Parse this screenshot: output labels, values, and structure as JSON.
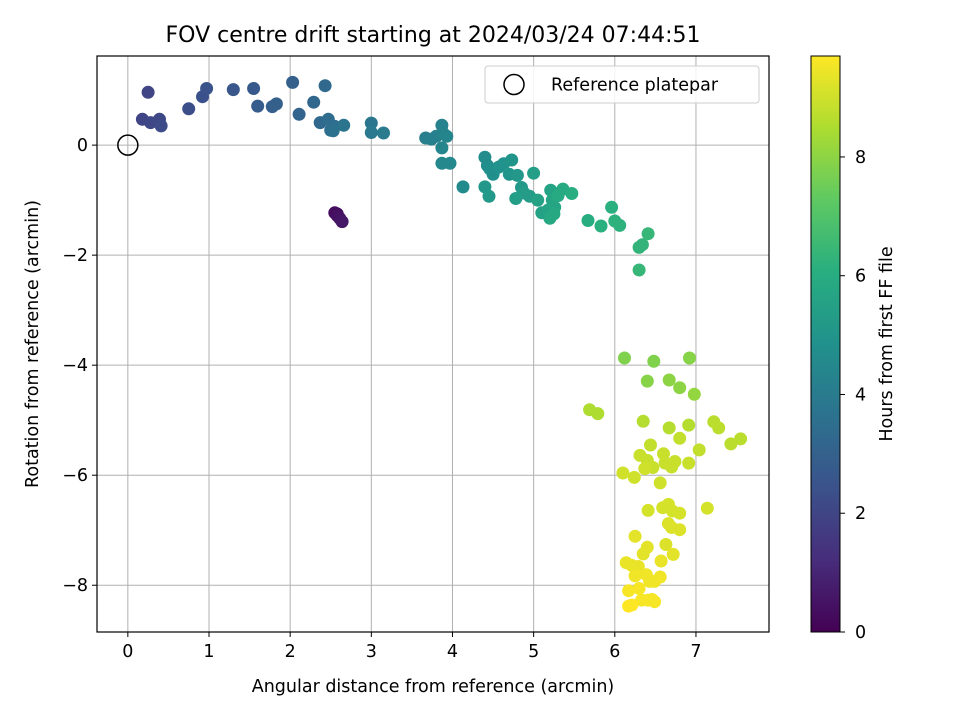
{
  "chart_data": {
    "type": "scatter",
    "title": "FOV centre drift starting at 2024/03/24 07:44:51",
    "xlabel": "Angular distance from reference (arcmin)",
    "ylabel": "Rotation from reference (arcmin)",
    "xlim": [
      -0.38,
      7.9
    ],
    "ylim": [
      -8.85,
      1.62
    ],
    "xticks": [
      0,
      1,
      2,
      3,
      4,
      5,
      6,
      7
    ],
    "yticks": [
      0,
      -2,
      -4,
      -6,
      -8
    ],
    "xtick_labels": [
      "0",
      "1",
      "2",
      "3",
      "4",
      "5",
      "6",
      "7"
    ],
    "ytick_labels": [
      "0",
      "−2",
      "−4",
      "−6",
      "−8"
    ],
    "grid": true,
    "legend": {
      "location": "upper right",
      "entries": [
        "Reference platepar"
      ]
    },
    "reference_point": {
      "x": 0,
      "y": 0,
      "label": "Reference platepar"
    },
    "colorbar": {
      "label": "Hours from first FF file",
      "colormap": "viridis",
      "range": [
        0,
        9.7
      ],
      "ticks": [
        0,
        2,
        4,
        6,
        8
      ],
      "tick_labels": [
        "0",
        "2",
        "4",
        "6",
        "8"
      ]
    },
    "series": [
      {
        "points": [
          [
            2.55,
            -1.23,
            0.3
          ],
          [
            2.58,
            -1.28,
            0.4
          ],
          [
            2.61,
            -1.33,
            0.5
          ],
          [
            2.64,
            -1.39,
            0.6
          ],
          [
            2.58,
            -1.25,
            0.35
          ],
          [
            0.25,
            0.96,
            2.0
          ],
          [
            0.18,
            0.47,
            2.0
          ],
          [
            0.28,
            0.41,
            2.1
          ],
          [
            0.39,
            0.47,
            2.1
          ],
          [
            0.41,
            0.35,
            2.2
          ],
          [
            0.75,
            0.66,
            2.3
          ],
          [
            0.92,
            0.88,
            2.4
          ],
          [
            0.97,
            1.03,
            2.5
          ],
          [
            1.3,
            1.01,
            2.6
          ],
          [
            1.55,
            1.03,
            2.7
          ],
          [
            1.6,
            0.71,
            2.8
          ],
          [
            1.78,
            0.7,
            2.9
          ],
          [
            1.83,
            0.75,
            2.95
          ],
          [
            2.03,
            1.14,
            3.0
          ],
          [
            2.11,
            0.56,
            3.1
          ],
          [
            2.29,
            0.78,
            3.2
          ],
          [
            2.37,
            0.41,
            3.3
          ],
          [
            2.43,
            1.08,
            3.3
          ],
          [
            2.47,
            0.47,
            3.4
          ],
          [
            2.5,
            0.27,
            3.5
          ],
          [
            2.55,
            0.34,
            3.5
          ],
          [
            2.53,
            0.26,
            3.6
          ],
          [
            2.66,
            0.36,
            3.7
          ],
          [
            3.0,
            0.4,
            3.8
          ],
          [
            3.0,
            0.23,
            3.9
          ],
          [
            3.15,
            0.22,
            4.0
          ],
          [
            3.67,
            0.13,
            4.1
          ],
          [
            3.74,
            0.11,
            4.2
          ],
          [
            3.8,
            0.16,
            4.2
          ],
          [
            3.87,
            0.36,
            4.3
          ],
          [
            3.88,
            0.23,
            4.3
          ],
          [
            3.93,
            0.16,
            4.4
          ],
          [
            3.87,
            -0.05,
            4.4
          ],
          [
            3.87,
            -0.33,
            4.5
          ],
          [
            3.97,
            -0.33,
            4.5
          ],
          [
            4.13,
            -0.76,
            4.6
          ],
          [
            4.4,
            -0.22,
            4.7
          ],
          [
            4.43,
            -0.37,
            4.7
          ],
          [
            4.46,
            -0.43,
            4.8
          ],
          [
            4.5,
            -0.53,
            4.8
          ],
          [
            4.57,
            -0.4,
            4.9
          ],
          [
            4.63,
            -0.34,
            4.9
          ],
          [
            4.7,
            -0.53,
            5.0
          ],
          [
            4.73,
            -0.27,
            5.0
          ],
          [
            4.8,
            -0.55,
            5.1
          ],
          [
            4.4,
            -0.76,
            5.1
          ],
          [
            4.45,
            -0.93,
            5.2
          ],
          [
            4.85,
            -0.77,
            5.2
          ],
          [
            4.88,
            -0.87,
            5.3
          ],
          [
            4.95,
            -0.93,
            5.3
          ],
          [
            4.78,
            -0.97,
            5.4
          ],
          [
            5.0,
            -0.51,
            5.4
          ],
          [
            5.05,
            -1.0,
            5.5
          ],
          [
            5.1,
            -1.23,
            5.5
          ],
          [
            5.18,
            -1.18,
            5.6
          ],
          [
            5.21,
            -0.82,
            5.6
          ],
          [
            5.23,
            -1.0,
            5.7
          ],
          [
            5.26,
            -1.13,
            5.7
          ],
          [
            5.2,
            -1.33,
            5.8
          ],
          [
            5.25,
            -1.25,
            5.8
          ],
          [
            5.3,
            -0.92,
            5.9
          ],
          [
            5.36,
            -0.8,
            5.9
          ],
          [
            5.47,
            -0.88,
            6.0
          ],
          [
            5.67,
            -1.37,
            6.0
          ],
          [
            5.83,
            -1.47,
            6.1
          ],
          [
            5.96,
            -1.13,
            6.1
          ],
          [
            6.0,
            -1.38,
            6.2
          ],
          [
            6.06,
            -1.46,
            6.2
          ],
          [
            6.3,
            -1.86,
            6.3
          ],
          [
            6.34,
            -1.81,
            6.3
          ],
          [
            6.41,
            -1.61,
            6.4
          ],
          [
            6.3,
            -2.27,
            6.4
          ],
          [
            6.12,
            -3.87,
            7.8
          ],
          [
            6.48,
            -3.93,
            7.8
          ],
          [
            6.92,
            -3.87,
            7.9
          ],
          [
            6.4,
            -4.29,
            7.9
          ],
          [
            6.67,
            -4.27,
            8.0
          ],
          [
            6.8,
            -4.41,
            8.0
          ],
          [
            6.98,
            -4.53,
            8.1
          ],
          [
            5.69,
            -4.81,
            8.5
          ],
          [
            5.79,
            -4.88,
            8.5
          ],
          [
            6.35,
            -5.02,
            8.6
          ],
          [
            6.67,
            -5.14,
            8.6
          ],
          [
            6.91,
            -5.09,
            8.6
          ],
          [
            7.22,
            -5.03,
            8.7
          ],
          [
            7.28,
            -5.14,
            8.7
          ],
          [
            7.43,
            -5.43,
            8.7
          ],
          [
            7.55,
            -5.34,
            8.7
          ],
          [
            6.44,
            -5.45,
            8.8
          ],
          [
            6.8,
            -5.33,
            8.8
          ],
          [
            7.04,
            -5.54,
            8.8
          ],
          [
            6.31,
            -5.64,
            8.9
          ],
          [
            6.4,
            -5.73,
            8.9
          ],
          [
            6.47,
            -5.86,
            8.9
          ],
          [
            6.6,
            -5.61,
            8.9
          ],
          [
            6.62,
            -5.78,
            8.9
          ],
          [
            6.7,
            -5.85,
            8.9
          ],
          [
            6.74,
            -5.75,
            8.9
          ],
          [
            6.91,
            -5.78,
            8.9
          ],
          [
            6.1,
            -5.96,
            9.0
          ],
          [
            6.24,
            -6.04,
            9.0
          ],
          [
            6.37,
            -5.88,
            9.0
          ],
          [
            6.56,
            -6.14,
            9.0
          ],
          [
            6.41,
            -6.64,
            9.1
          ],
          [
            6.59,
            -6.59,
            9.1
          ],
          [
            6.66,
            -6.53,
            9.1
          ],
          [
            6.71,
            -6.65,
            9.1
          ],
          [
            6.8,
            -6.69,
            9.1
          ],
          [
            7.14,
            -6.6,
            9.1
          ],
          [
            6.66,
            -6.88,
            9.2
          ],
          [
            6.7,
            -6.95,
            9.2
          ],
          [
            6.8,
            -6.99,
            9.2
          ],
          [
            6.63,
            -7.26,
            9.2
          ],
          [
            6.25,
            -7.11,
            9.3
          ],
          [
            6.72,
            -7.44,
            9.3
          ],
          [
            6.35,
            -7.43,
            9.3
          ],
          [
            6.4,
            -7.31,
            9.3
          ],
          [
            6.14,
            -7.59,
            9.4
          ],
          [
            6.21,
            -7.64,
            9.4
          ],
          [
            6.29,
            -7.66,
            9.4
          ],
          [
            6.57,
            -7.56,
            9.4
          ],
          [
            6.25,
            -7.83,
            9.5
          ],
          [
            6.39,
            -7.81,
            9.5
          ],
          [
            6.43,
            -7.93,
            9.5
          ],
          [
            6.49,
            -7.93,
            9.5
          ],
          [
            6.56,
            -7.85,
            9.5
          ],
          [
            6.17,
            -8.1,
            9.6
          ],
          [
            6.3,
            -8.06,
            9.6
          ],
          [
            6.33,
            -8.27,
            9.6
          ],
          [
            6.41,
            -8.27,
            9.6
          ],
          [
            6.46,
            -8.26,
            9.6
          ],
          [
            6.49,
            -8.3,
            9.6
          ],
          [
            6.17,
            -8.38,
            9.7
          ],
          [
            6.21,
            -8.36,
            9.7
          ]
        ]
      }
    ]
  }
}
